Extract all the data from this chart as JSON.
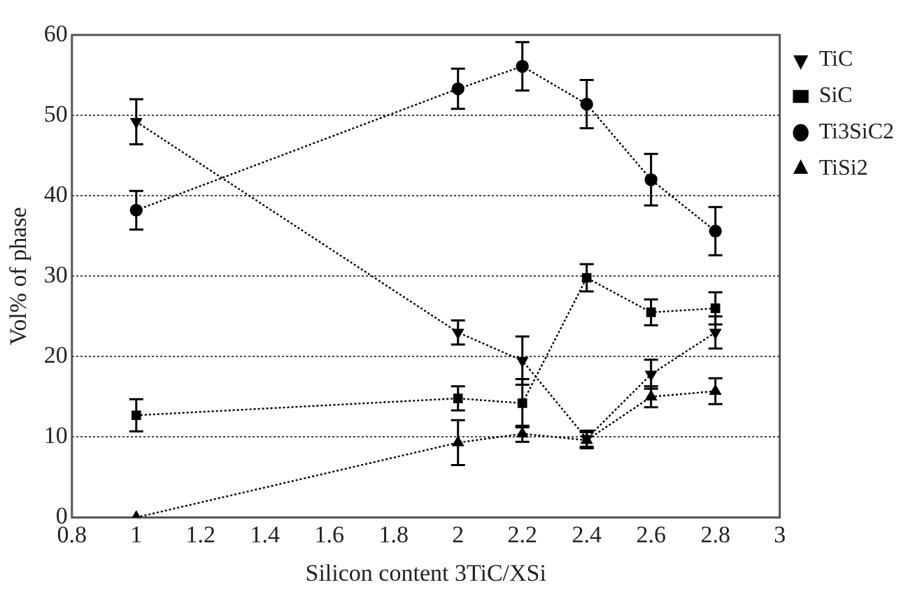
{
  "chart_data": {
    "type": "line",
    "xlabel": "Silicon content 3TiC/XSi",
    "ylabel": "Vol% of phase",
    "x": [
      1,
      2,
      2.2,
      2.4,
      2.6,
      2.8
    ],
    "series": [
      {
        "name": "TiC",
        "color": "#000000",
        "marker": "triangle-down",
        "values": [
          49.2,
          23,
          19.5,
          9.8,
          17.8,
          23
        ],
        "errors": [
          2.8,
          1.5,
          3,
          1,
          1.8,
          2
        ]
      },
      {
        "name": "SiC",
        "color": "#000000",
        "marker": "square",
        "values": [
          12.7,
          14.8,
          14.2,
          29.8,
          25.5,
          26
        ],
        "errors": [
          2,
          1.5,
          3,
          1.7,
          1.6,
          2
        ]
      },
      {
        "name": "Ti3SiC2",
        "color": "#000000",
        "marker": "circle",
        "values": [
          38.2,
          53.3,
          56.1,
          51.4,
          42,
          35.6
        ],
        "errors": [
          2.4,
          2.5,
          3,
          3,
          3.2,
          3
        ]
      },
      {
        "name": "TiSi2",
        "color": "#000000",
        "marker": "triangle",
        "values": [
          0,
          9.3,
          10.4,
          9.6,
          15,
          15.7
        ],
        "errors": [
          null,
          2.8,
          1,
          1,
          1.3,
          1.6
        ]
      }
    ],
    "xlim": [
      0.8,
      3
    ],
    "xticks": [
      0.8,
      1,
      1.2,
      1.4,
      1.6,
      1.8,
      2,
      2.2,
      2.4,
      2.6,
      2.8,
      3
    ],
    "ylim": [
      0,
      60
    ],
    "yticks": [
      0,
      10,
      20,
      30,
      40,
      50,
      60
    ],
    "grid": "y",
    "legend": "top right",
    "line_style": "dotted"
  }
}
